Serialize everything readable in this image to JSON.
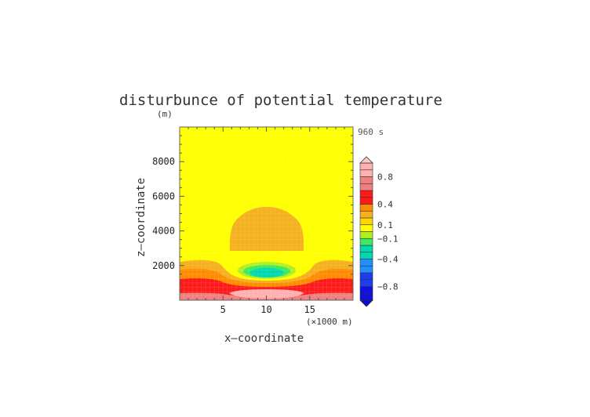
{
  "chart_data": {
    "type": "heatmap",
    "title": "disturbunce of potential temperature",
    "y_unit_label": "(m)",
    "x_unit_label": "(×1000 m)",
    "xlabel": "x—coordinate",
    "ylabel": "z—coordinate",
    "time_label": "960 s",
    "x_ticks": [
      5,
      10,
      15
    ],
    "y_ticks": [
      2000,
      4000,
      6000,
      8000
    ],
    "xlim": [
      0,
      20
    ],
    "ylim": [
      0,
      10000
    ],
    "colorbar": {
      "levels": [
        -1.0,
        -0.9,
        -0.8,
        -0.7,
        -0.6,
        -0.5,
        -0.4,
        -0.3,
        -0.2,
        -0.1,
        0.0,
        0.1,
        0.2,
        0.3,
        0.4,
        0.5,
        0.6,
        0.7,
        0.8,
        0.9,
        1.0
      ],
      "tick_labels": [
        "0.8",
        "0.4",
        "0.1",
        "−0.1",
        "−0.4",
        "−0.8"
      ],
      "tick_values": [
        0.8,
        0.4,
        0.1,
        -0.1,
        -0.4,
        -0.8
      ],
      "colors": {
        "lt_-0.8": "#1010e0",
        "-0.8_-0.6": "#1e3cf0",
        "-0.6_-0.4": "#1e90ff",
        "-0.4_-0.2": "#00d8b0",
        "-0.2_-0.1": "#40e860",
        "-0.1_0.0": "#b0f020",
        "0.0_0.1": "#ffff00",
        "0.1_0.2": "#ffd700",
        "0.2_0.3": "#f5b01e",
        "0.3_0.4": "#ff8c00",
        "0.4_0.6": "#ff1a1a",
        "0.6_0.8": "#f08080",
        "0.8_1.0": "#ffb0b0",
        "gt_1.0": "#ffc8c8"
      }
    },
    "regions": [
      {
        "range": [
          0.0,
          0.1
        ],
        "description_level": 0.05,
        "x_center": 10,
        "z_center": 4100
      },
      {
        "range": [
          -0.1,
          0.0
        ],
        "description_level": -0.05,
        "x_center": 10,
        "z_center": 1800
      },
      {
        "range": [
          -0.4,
          -0.2
        ],
        "description_level": -0.3,
        "x_center": 10,
        "z_center": 1700
      },
      {
        "range": [
          0.6,
          0.8
        ],
        "description_level": 0.7,
        "x_center": 10,
        "z_center": 300
      }
    ]
  }
}
